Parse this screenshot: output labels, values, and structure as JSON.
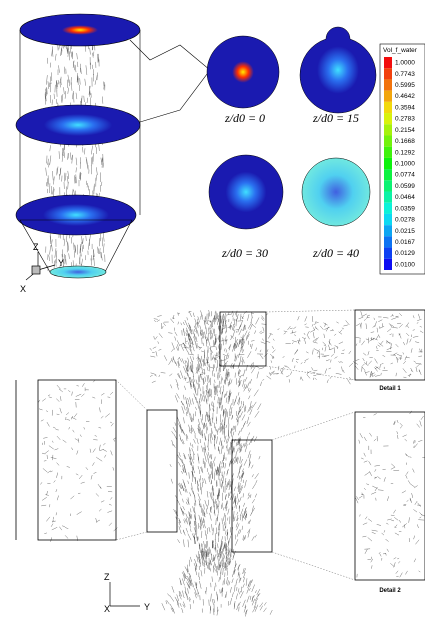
{
  "top": {
    "slice_labels": [
      "z/d0 = 0",
      "z/d0 = 15",
      "z/d0 = 30",
      "z/d0 = 40"
    ],
    "colorbar": {
      "title": "Vol_f_water",
      "levels": [
        "1.0000",
        "0.7743",
        "0.5995",
        "0.4642",
        "0.3594",
        "0.2783",
        "0.2154",
        "0.1668",
        "0.1292",
        "0.1000",
        "0.0774",
        "0.0599",
        "0.0464",
        "0.0359",
        "0.0278",
        "0.0215",
        "0.0167",
        "0.0129",
        "0.0100"
      ]
    },
    "axes": {
      "z": "Z",
      "x": "X",
      "y": "Y"
    }
  },
  "bottom": {
    "details": [
      "Detail 1",
      "Detail 2"
    ],
    "axes": {
      "z": "Z",
      "x": "X",
      "y": "Y"
    }
  }
}
